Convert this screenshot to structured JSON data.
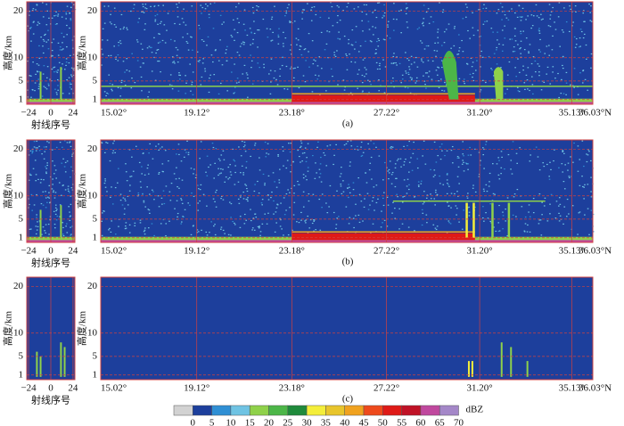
{
  "chart_data": {
    "type": "radar-profile",
    "y_label": "高度/km",
    "x_label_left": "射线序号",
    "panels": [
      {
        "caption": "(a)"
      },
      {
        "caption": "(b)"
      },
      {
        "caption": "(c)"
      }
    ],
    "ylim": [
      0,
      22
    ],
    "yticks": [
      1,
      5,
      10,
      20
    ],
    "left_axis": {
      "xlim": [
        -26,
        26
      ],
      "xticks": [
        {
          "value": -24,
          "label": "−24"
        },
        0,
        24
      ]
    },
    "main_axis": {
      "xlim": [
        15.02,
        36.03
      ],
      "xticks": [
        {
          "value": 15.02,
          "label": "15.02°"
        },
        {
          "value": 19.12,
          "label": "19.12°"
        },
        {
          "value": 23.18,
          "label": "23.18°"
        },
        {
          "value": 27.22,
          "label": "27.22°"
        },
        {
          "value": 31.2,
          "label": "31.20°"
        },
        {
          "value": 35.13,
          "label": "35.13°"
        },
        {
          "value": 36.03,
          "label": "36.03°N"
        }
      ]
    },
    "grid": true,
    "colorbar": {
      "unit": "dBZ",
      "ticks": [
        0,
        5,
        10,
        15,
        20,
        25,
        30,
        35,
        40,
        45,
        50,
        55,
        60,
        65,
        70
      ],
      "colors": [
        "#d2d2d2",
        "#1d3f9c",
        "#2f8fd4",
        "#6fc3e3",
        "#8fd14a",
        "#4cb648",
        "#1f8a3b",
        "#f4ee3a",
        "#e8c52c",
        "#f0a21f",
        "#ee4a1c",
        "#df1a17",
        "#c01226",
        "#c0489e",
        "#a487c8"
      ]
    }
  }
}
